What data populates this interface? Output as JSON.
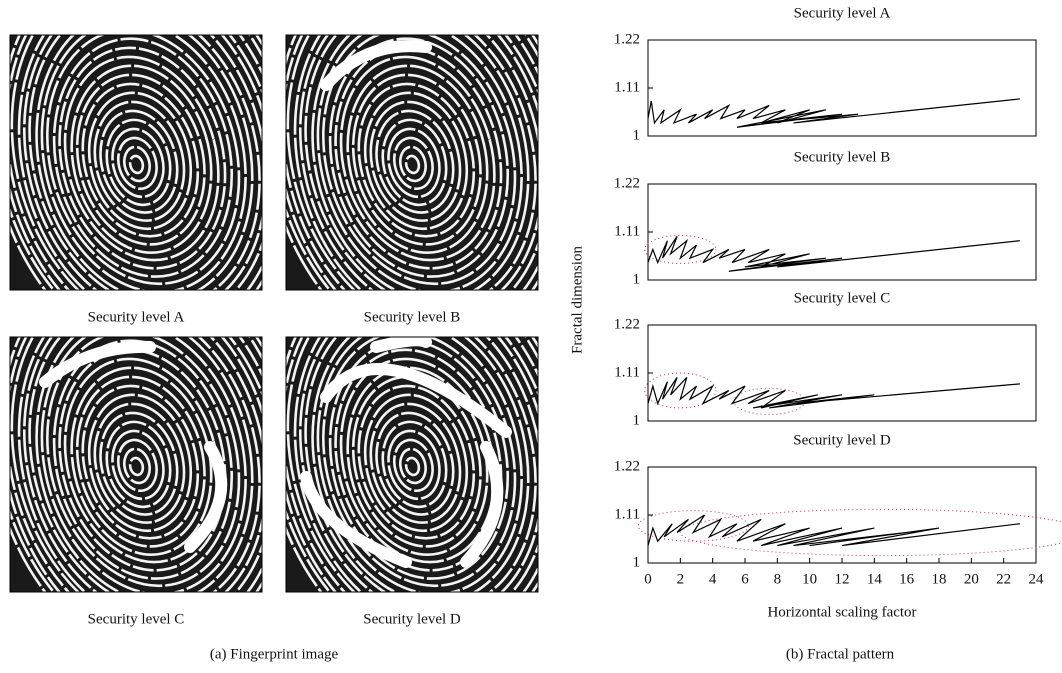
{
  "fingerprints": {
    "caption": "(a) Fingerprint image",
    "panels": [
      {
        "caption": "Security level A"
      },
      {
        "caption": "Security level B"
      },
      {
        "caption": "Security level C"
      },
      {
        "caption": "Security level D"
      }
    ]
  },
  "caption_b": "(b) Fractal pattern",
  "chart_data": [
    {
      "type": "line",
      "title": "Security level A",
      "ylabel": "Fractal dimension",
      "color": "#000000",
      "x": [
        0,
        0.2,
        0.4,
        1,
        0.8,
        2,
        1.6,
        3,
        2.5,
        4,
        3.5,
        5,
        4.5,
        6,
        5.5,
        7.5,
        6.5,
        8.5,
        7,
        10,
        8,
        11,
        5.5,
        12,
        7,
        13,
        9,
        23
      ],
      "values": [
        1.04,
        1.08,
        1.03,
        1.06,
        1.03,
        1.06,
        1.03,
        1.05,
        1.03,
        1.06,
        1.04,
        1.07,
        1.04,
        1.06,
        1.04,
        1.07,
        1.04,
        1.06,
        1.03,
        1.06,
        1.03,
        1.06,
        1.02,
        1.05,
        1.03,
        1.05,
        1.03,
        1.085
      ],
      "xlim": [
        0,
        24
      ],
      "ylim": [
        1,
        1.22
      ],
      "yticks": [
        1,
        1.11,
        1.22
      ]
    },
    {
      "type": "line",
      "title": "Security level B",
      "color": "#000000",
      "x": [
        0,
        0.3,
        0.6,
        1.2,
        0.9,
        1.8,
        1.4,
        2.4,
        2,
        3,
        2.6,
        4,
        3.4,
        5,
        4.4,
        6,
        5.2,
        7.5,
        6.2,
        8.5,
        7,
        10,
        6,
        11,
        5,
        12,
        8,
        23
      ],
      "values": [
        1.04,
        1.07,
        1.04,
        1.09,
        1.05,
        1.1,
        1.06,
        1.09,
        1.05,
        1.08,
        1.05,
        1.07,
        1.04,
        1.07,
        1.05,
        1.07,
        1.04,
        1.07,
        1.04,
        1.06,
        1.03,
        1.06,
        1.03,
        1.05,
        1.02,
        1.05,
        1.03,
        1.09
      ],
      "xlim": [
        0,
        24
      ],
      "ylim": [
        1,
        1.22
      ],
      "yticks": [
        1,
        1.11,
        1.22
      ]
    },
    {
      "type": "line",
      "title": "Security level C",
      "color": "#000000",
      "x": [
        0,
        0.3,
        0.6,
        1.2,
        0.9,
        1.8,
        1.4,
        2.4,
        2,
        3,
        2.6,
        4,
        3.4,
        5,
        4.4,
        6,
        5.2,
        7.5,
        6.2,
        8.5,
        7,
        10.5,
        6.5,
        12,
        7.5,
        14,
        9,
        23
      ],
      "values": [
        1.04,
        1.08,
        1.04,
        1.09,
        1.05,
        1.1,
        1.06,
        1.1,
        1.05,
        1.08,
        1.05,
        1.08,
        1.04,
        1.07,
        1.05,
        1.08,
        1.04,
        1.07,
        1.04,
        1.07,
        1.03,
        1.06,
        1.03,
        1.06,
        1.03,
        1.06,
        1.04,
        1.085
      ],
      "xlim": [
        0,
        24
      ],
      "ylim": [
        1,
        1.22
      ],
      "yticks": [
        1,
        1.11,
        1.22
      ]
    },
    {
      "type": "line",
      "title": "Security level D",
      "xlabel": "Horizontal scaling factor",
      "color": "#000000",
      "x": [
        0,
        0.3,
        0.6,
        1.5,
        1,
        2.5,
        1.8,
        3.5,
        2.8,
        4.5,
        3.8,
        5.5,
        4.6,
        7,
        5.5,
        8.5,
        6.5,
        10,
        7,
        12,
        8,
        14,
        9,
        16,
        10,
        18,
        12,
        23
      ],
      "values": [
        1.04,
        1.08,
        1.05,
        1.09,
        1.06,
        1.1,
        1.07,
        1.11,
        1.07,
        1.1,
        1.06,
        1.09,
        1.06,
        1.1,
        1.05,
        1.09,
        1.05,
        1.08,
        1.04,
        1.08,
        1.04,
        1.08,
        1.04,
        1.07,
        1.04,
        1.08,
        1.04,
        1.09
      ],
      "xlim": [
        0,
        24
      ],
      "ylim": [
        1,
        1.22
      ],
      "yticks": [
        1,
        1.11,
        1.22
      ],
      "xticks": [
        0,
        2,
        4,
        6,
        8,
        10,
        12,
        14,
        16,
        18,
        20,
        22,
        24
      ]
    }
  ]
}
